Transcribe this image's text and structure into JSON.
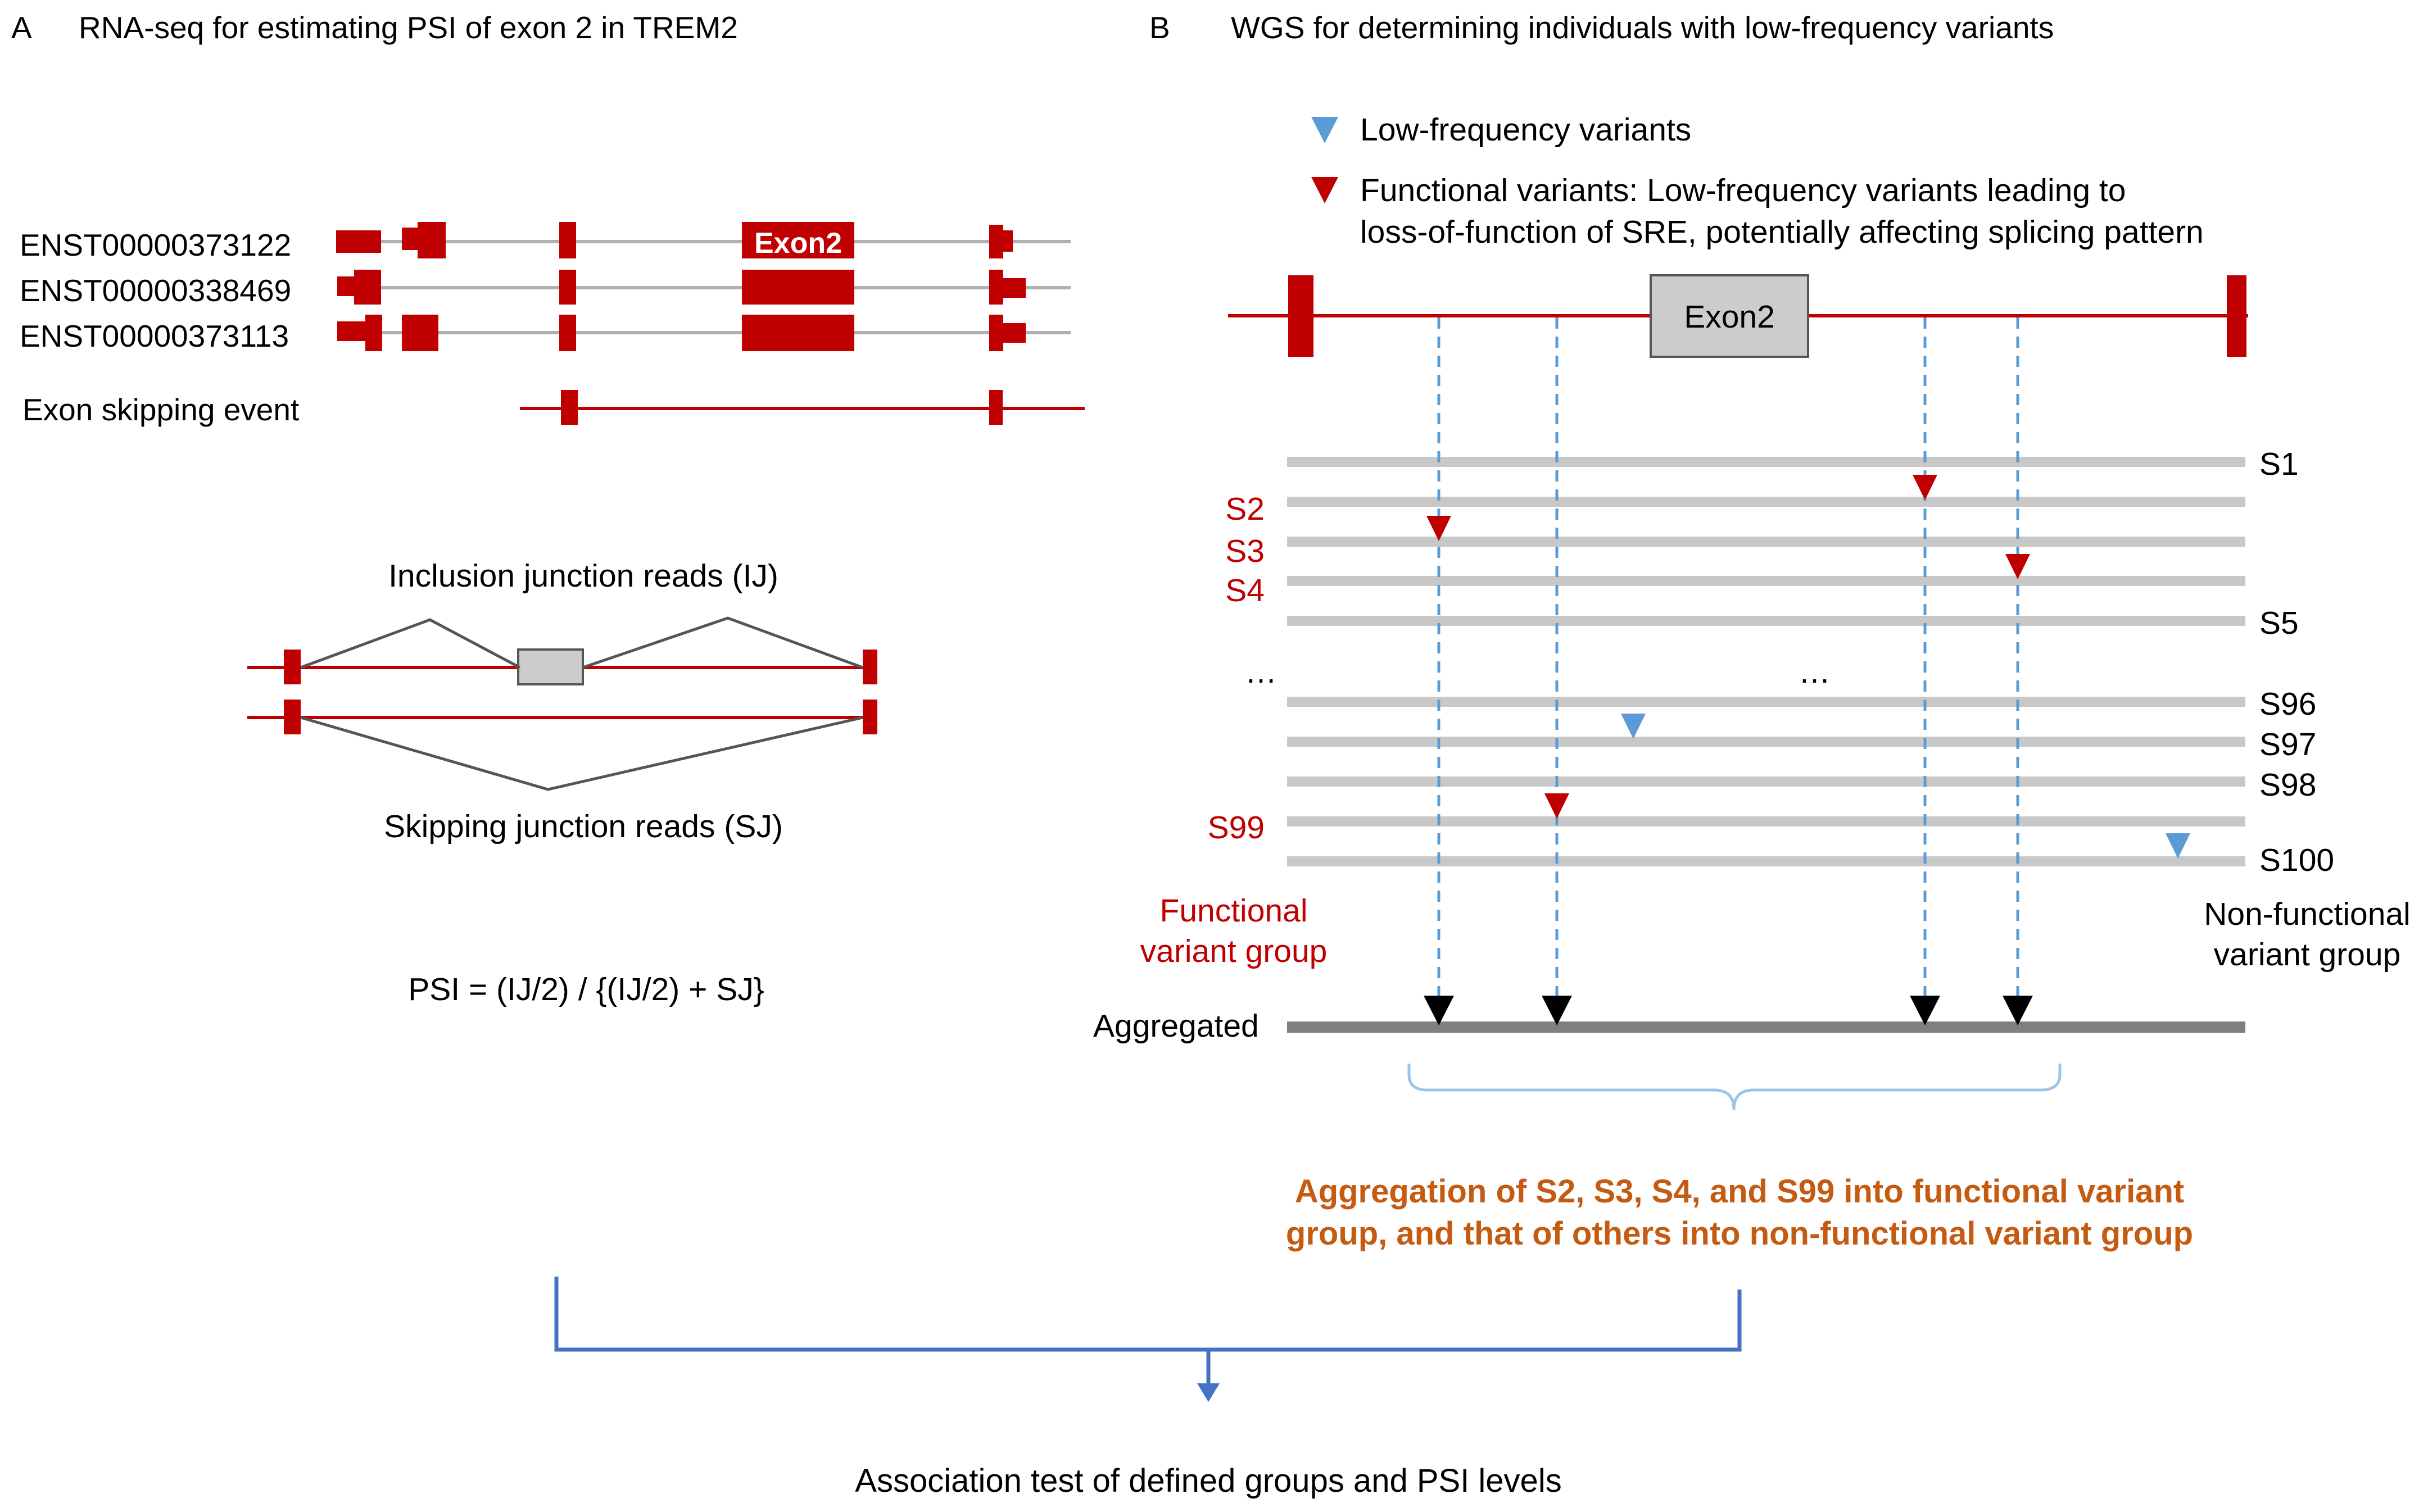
{
  "colors": {
    "dark_red": "#c00000",
    "gray_bar": "#c8c8c8",
    "dark_gray": "#7f7f7f",
    "blue": "#5b9bd5",
    "bracket_blue": "#4472c4",
    "orange": "#c55a11",
    "exon_box": "#cccccc"
  },
  "panelA": {
    "label": "A",
    "title": "RNA-seq for estimating PSI of exon 2 in TREM2",
    "transcripts": [
      "ENST00000373122",
      "ENST00000338469",
      "ENST00000373113"
    ],
    "exon2_label": "Exon2",
    "skipping_event_label": "Exon skipping event",
    "inclusion_label": "Inclusion junction reads (IJ)",
    "skipping_label": "Skipping junction reads (SJ)",
    "formula": "PSI = (IJ/2) / {(IJ/2) + SJ}"
  },
  "panelB": {
    "label": "B",
    "title": "WGS for determining individuals with low-frequency variants",
    "legend_low": "Low-frequency variants",
    "legend_functional_line1": "Functional variants: Low-frequency variants leading to",
    "legend_functional_line2": "loss-of-function of SRE, potentially affecting splicing pattern",
    "exon2_label": "Exon2",
    "samples_right": [
      "S1",
      "S5",
      "S96",
      "S97",
      "S98",
      "S100"
    ],
    "samples_left": [
      "S2",
      "S3",
      "S4",
      "S99"
    ],
    "ellipsis_left": "…",
    "ellipsis_mid": "…",
    "functional_group": [
      "Functional",
      "variant group"
    ],
    "nonfunctional_group": [
      "Non-functional",
      "variant group"
    ],
    "aggregated_label": "Aggregated",
    "aggregation_text_line1": "Aggregation of S2, S3, S4, and S99 into functional variant",
    "aggregation_text_line2": "group, and that of others into non-functional variant group"
  },
  "bottom": {
    "association_text": "Association test of defined groups and PSI levels"
  }
}
